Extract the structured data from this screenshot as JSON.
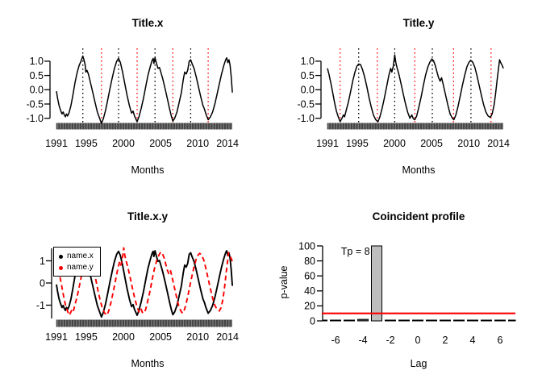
{
  "figure": {
    "background": "#ffffff",
    "accent_red": "#ff0000",
    "bar_fill": "#bdbdbd"
  },
  "chart_data": [
    {
      "id": "titlex",
      "type": "line",
      "title": "Title.x",
      "xlabel": "Months",
      "xticks": [
        1991,
        1995,
        2000,
        2005,
        2010,
        2014
      ],
      "xtick_labels": [
        "1991",
        "1995",
        "2000",
        "2005",
        "2010",
        "2014"
      ],
      "yticks": [
        1.0,
        0.5,
        0.0,
        -0.5,
        -1.0
      ],
      "ytick_labels": [
        "1.0",
        "0.5",
        "0.0",
        "-0.5",
        "-1.0"
      ],
      "xlim": [
        1990.6,
        2015.2
      ],
      "ylim": [
        -1.3,
        1.3
      ],
      "grid": false,
      "series": [
        {
          "name": "x",
          "color": "#000000",
          "points_ref": "x"
        }
      ],
      "vlines": [
        {
          "x": 1994.55,
          "color": "#000000"
        },
        {
          "x": 1999.35,
          "color": "#000000"
        },
        {
          "x": 2004.25,
          "color": "#000000"
        },
        {
          "x": 2009.05,
          "color": "#000000"
        },
        {
          "x": 1997.05,
          "color": "#ff0000"
        },
        {
          "x": 2001.85,
          "color": "#ff0000"
        },
        {
          "x": 2006.65,
          "color": "#ff0000"
        },
        {
          "x": 2011.4,
          "color": "#ff0000"
        }
      ],
      "rug": {
        "start": 1991.0,
        "end": 2014.65,
        "step_years": 0.083333
      }
    },
    {
      "id": "titley",
      "type": "line",
      "title": "Title.y",
      "xlabel": "Months",
      "xticks": [
        1991,
        1995,
        2000,
        2005,
        2010,
        2014
      ],
      "xtick_labels": [
        "1991",
        "1995",
        "2000",
        "2005",
        "2010",
        "2014"
      ],
      "yticks": [
        1.0,
        0.5,
        0.0,
        -0.5,
        -1.0
      ],
      "ytick_labels": [
        "1.0",
        "0.5",
        "0.0",
        "-0.5",
        "-1.0"
      ],
      "xlim": [
        1990.6,
        2015.2
      ],
      "ylim": [
        -1.3,
        1.3
      ],
      "grid": false,
      "series": [
        {
          "name": "y",
          "color": "#000000",
          "points_ref": "y"
        }
      ],
      "vlines": [
        {
          "x": 1992.7,
          "color": "#ff0000"
        },
        {
          "x": 1997.7,
          "color": "#ff0000"
        },
        {
          "x": 2002.75,
          "color": "#ff0000"
        },
        {
          "x": 2007.95,
          "color": "#ff0000"
        },
        {
          "x": 2013.0,
          "color": "#ff0000"
        },
        {
          "x": 1995.2,
          "color": "#000000"
        },
        {
          "x": 2000.05,
          "color": "#000000"
        },
        {
          "x": 2005.1,
          "color": "#000000"
        },
        {
          "x": 2010.3,
          "color": "#000000"
        }
      ],
      "rug": {
        "start": 1991.0,
        "end": 2014.65,
        "step_years": 0.083333
      }
    },
    {
      "id": "titlexy",
      "type": "line",
      "title": "Title.x.y",
      "xlabel": "Months",
      "xticks": [
        1991,
        1995,
        2000,
        2005,
        2010,
        2014
      ],
      "xtick_labels": [
        "1991",
        "1995",
        "2000",
        "2005",
        "2010",
        "2014"
      ],
      "yticks": [
        1,
        0,
        -1
      ],
      "ytick_labels": [
        "1",
        "0",
        "-1"
      ],
      "xlim": [
        1990.6,
        2015.2
      ],
      "ylim": [
        -1.7,
        1.7
      ],
      "grid": false,
      "legend_position": "topleft",
      "series": [
        {
          "name": "name.x",
          "color": "#000000",
          "points_ref": "x",
          "value_scale": 1.3,
          "width": 1.9
        },
        {
          "name": "name.y",
          "color": "#ff0000",
          "points_ref": "y",
          "value_scale": 1.3,
          "width": 1.9,
          "dash": "6 4"
        }
      ],
      "rug": {
        "start": 1991.0,
        "end": 2014.65,
        "step_years": 0.083333
      }
    },
    {
      "id": "profile",
      "type": "bar",
      "title": "Coincident profile",
      "xlabel": "Lag",
      "ylabel": "p-value",
      "categories": [
        -7,
        -6,
        -5,
        -4,
        -3,
        -2,
        -1,
        0,
        1,
        2,
        3,
        4,
        5,
        6,
        7
      ],
      "values": [
        0.5,
        0.5,
        0.5,
        2,
        100,
        0.5,
        0.5,
        0.5,
        0.5,
        0.5,
        0.5,
        0.5,
        0.5,
        0.5,
        0.5
      ],
      "bar_fill": "#bdbdbd",
      "yticks": [
        0,
        20,
        40,
        60,
        80,
        100
      ],
      "ytick_labels": [
        "0",
        "20",
        "40",
        "60",
        "80",
        "100"
      ],
      "xticks": [
        -6,
        -4,
        -2,
        0,
        2,
        4,
        6
      ],
      "xtick_labels": [
        "-6",
        "-4",
        "-2",
        "0",
        "2",
        "4",
        "6"
      ],
      "ylim": [
        0,
        100
      ],
      "grid": false,
      "hline": {
        "y": 10,
        "color": "#ff0000"
      },
      "annotation": {
        "text": "Tp = 8",
        "x": -5.6,
        "y": 88
      }
    }
  ],
  "timeseries": {
    "x": [
      [
        1991.0,
        -0.05
      ],
      [
        1991.15,
        -0.3
      ],
      [
        1991.35,
        -0.55
      ],
      [
        1991.55,
        -0.72
      ],
      [
        1991.75,
        -0.85
      ],
      [
        1991.9,
        -0.78
      ],
      [
        1992.05,
        -0.88
      ],
      [
        1992.2,
        -0.95
      ],
      [
        1992.35,
        -0.85
      ],
      [
        1992.5,
        -0.92
      ],
      [
        1992.7,
        -0.8
      ],
      [
        1992.95,
        -0.55
      ],
      [
        1993.2,
        -0.2
      ],
      [
        1993.5,
        0.25
      ],
      [
        1993.8,
        0.62
      ],
      [
        1994.05,
        0.85
      ],
      [
        1994.3,
        1.0
      ],
      [
        1994.55,
        1.18
      ],
      [
        1994.7,
        1.05
      ],
      [
        1994.85,
        0.88
      ],
      [
        1994.95,
        0.62
      ],
      [
        1995.1,
        0.68
      ],
      [
        1995.3,
        0.55
      ],
      [
        1995.6,
        0.22
      ],
      [
        1995.9,
        -0.12
      ],
      [
        1996.2,
        -0.45
      ],
      [
        1996.5,
        -0.78
      ],
      [
        1996.8,
        -1.0
      ],
      [
        1997.05,
        -1.18
      ],
      [
        1997.3,
        -1.02
      ],
      [
        1997.6,
        -0.72
      ],
      [
        1997.9,
        -0.35
      ],
      [
        1998.2,
        0.05
      ],
      [
        1998.5,
        0.42
      ],
      [
        1998.8,
        0.75
      ],
      [
        1999.1,
        1.0
      ],
      [
        1999.35,
        1.1
      ],
      [
        1999.6,
        0.95
      ],
      [
        1999.9,
        0.6
      ],
      [
        2000.2,
        0.2
      ],
      [
        2000.5,
        -0.2
      ],
      [
        2000.8,
        -0.55
      ],
      [
        2001.1,
        -0.82
      ],
      [
        2001.3,
        -0.75
      ],
      [
        2001.5,
        -0.92
      ],
      [
        2001.85,
        -1.12
      ],
      [
        2002.1,
        -0.95
      ],
      [
        2002.4,
        -0.65
      ],
      [
        2002.7,
        -0.3
      ],
      [
        2003.0,
        0.1
      ],
      [
        2003.3,
        0.5
      ],
      [
        2003.6,
        0.8
      ],
      [
        2003.85,
        1.02
      ],
      [
        2004.0,
        1.1
      ],
      [
        2004.1,
        0.92
      ],
      [
        2004.25,
        1.12
      ],
      [
        2004.45,
        0.92
      ],
      [
        2004.65,
        0.75
      ],
      [
        2004.85,
        0.78
      ],
      [
        2005.0,
        0.65
      ],
      [
        2005.3,
        0.38
      ],
      [
        2005.6,
        0.05
      ],
      [
        2005.9,
        -0.3
      ],
      [
        2006.2,
        -0.65
      ],
      [
        2006.45,
        -0.92
      ],
      [
        2006.65,
        -1.1
      ],
      [
        2006.9,
        -1.0
      ],
      [
        2007.2,
        -0.78
      ],
      [
        2007.5,
        -0.45
      ],
      [
        2007.8,
        -0.1
      ],
      [
        2008.05,
        0.35
      ],
      [
        2008.25,
        0.62
      ],
      [
        2008.45,
        0.55
      ],
      [
        2008.65,
        0.68
      ],
      [
        2008.85,
        1.0
      ],
      [
        2009.05,
        1.05
      ],
      [
        2009.25,
        0.9
      ],
      [
        2009.5,
        0.75
      ],
      [
        2009.8,
        0.45
      ],
      [
        2010.1,
        0.1
      ],
      [
        2010.4,
        -0.25
      ],
      [
        2010.7,
        -0.55
      ],
      [
        2010.9,
        -0.68
      ],
      [
        2011.1,
        -0.85
      ],
      [
        2011.4,
        -1.05
      ],
      [
        2011.7,
        -0.95
      ],
      [
        2012.0,
        -0.78
      ],
      [
        2012.3,
        -0.5
      ],
      [
        2012.6,
        -0.15
      ],
      [
        2012.9,
        0.2
      ],
      [
        2013.2,
        0.55
      ],
      [
        2013.5,
        0.85
      ],
      [
        2013.75,
        1.05
      ],
      [
        2013.9,
        1.12
      ],
      [
        2014.05,
        0.95
      ],
      [
        2014.2,
        1.05
      ],
      [
        2014.35,
        0.85
      ],
      [
        2014.5,
        0.45
      ],
      [
        2014.65,
        -0.1
      ]
    ],
    "y": [
      [
        1991.0,
        0.75
      ],
      [
        1991.2,
        0.55
      ],
      [
        1991.45,
        0.25
      ],
      [
        1991.7,
        -0.1
      ],
      [
        1991.95,
        -0.45
      ],
      [
        1992.2,
        -0.75
      ],
      [
        1992.45,
        -0.95
      ],
      [
        1992.7,
        -1.12
      ],
      [
        1992.95,
        -1.0
      ],
      [
        1993.15,
        -0.88
      ],
      [
        1993.3,
        -0.95
      ],
      [
        1993.5,
        -0.75
      ],
      [
        1993.8,
        -0.45
      ],
      [
        1994.1,
        -0.08
      ],
      [
        1994.4,
        0.3
      ],
      [
        1994.7,
        0.62
      ],
      [
        1994.95,
        0.82
      ],
      [
        1995.2,
        0.9
      ],
      [
        1995.45,
        0.88
      ],
      [
        1995.7,
        0.72
      ],
      [
        1996.0,
        0.45
      ],
      [
        1996.3,
        0.1
      ],
      [
        1996.6,
        -0.28
      ],
      [
        1996.9,
        -0.62
      ],
      [
        1997.2,
        -0.9
      ],
      [
        1997.5,
        -1.05
      ],
      [
        1997.8,
        -1.12
      ],
      [
        1998.05,
        -0.95
      ],
      [
        1998.35,
        -0.65
      ],
      [
        1998.65,
        -0.3
      ],
      [
        1998.95,
        0.1
      ],
      [
        1999.25,
        0.5
      ],
      [
        1999.5,
        0.75
      ],
      [
        1999.65,
        0.62
      ],
      [
        1999.85,
        0.82
      ],
      [
        2000.05,
        1.22
      ],
      [
        2000.2,
        0.95
      ],
      [
        2000.35,
        0.78
      ],
      [
        2000.6,
        0.55
      ],
      [
        2000.9,
        0.2
      ],
      [
        2001.2,
        -0.15
      ],
      [
        2001.5,
        -0.5
      ],
      [
        2001.8,
        -0.8
      ],
      [
        2002.1,
        -1.0
      ],
      [
        2002.35,
        -0.88
      ],
      [
        2002.55,
        -1.02
      ],
      [
        2002.75,
        -1.05
      ],
      [
        2003.0,
        -0.92
      ],
      [
        2003.3,
        -0.6
      ],
      [
        2003.6,
        -0.25
      ],
      [
        2003.9,
        0.15
      ],
      [
        2004.2,
        0.52
      ],
      [
        2004.5,
        0.8
      ],
      [
        2004.8,
        0.98
      ],
      [
        2005.05,
        1.08
      ],
      [
        2005.25,
        1.02
      ],
      [
        2005.5,
        0.85
      ],
      [
        2005.75,
        0.6
      ],
      [
        2005.95,
        0.42
      ],
      [
        2006.15,
        0.3
      ],
      [
        2006.35,
        0.42
      ],
      [
        2006.6,
        0.15
      ],
      [
        2006.9,
        -0.2
      ],
      [
        2007.2,
        -0.55
      ],
      [
        2007.5,
        -0.85
      ],
      [
        2007.8,
        -1.0
      ],
      [
        2008.0,
        -1.05
      ],
      [
        2008.25,
        -0.9
      ],
      [
        2008.55,
        -0.6
      ],
      [
        2008.85,
        -0.22
      ],
      [
        2009.15,
        0.15
      ],
      [
        2009.45,
        0.5
      ],
      [
        2009.75,
        0.8
      ],
      [
        2010.0,
        0.95
      ],
      [
        2010.25,
        1.03
      ],
      [
        2010.5,
        0.98
      ],
      [
        2010.8,
        0.8
      ],
      [
        2011.1,
        0.5
      ],
      [
        2011.4,
        0.15
      ],
      [
        2011.7,
        -0.2
      ],
      [
        2012.0,
        -0.52
      ],
      [
        2012.3,
        -0.78
      ],
      [
        2012.6,
        -0.92
      ],
      [
        2012.9,
        -0.97
      ],
      [
        2013.15,
        -0.85
      ],
      [
        2013.4,
        -0.55
      ],
      [
        2013.6,
        -0.15
      ],
      [
        2013.8,
        0.3
      ],
      [
        2014.0,
        0.75
      ],
      [
        2014.15,
        1.05
      ],
      [
        2014.3,
        0.95
      ],
      [
        2014.45,
        0.88
      ],
      [
        2014.65,
        0.75
      ]
    ]
  }
}
